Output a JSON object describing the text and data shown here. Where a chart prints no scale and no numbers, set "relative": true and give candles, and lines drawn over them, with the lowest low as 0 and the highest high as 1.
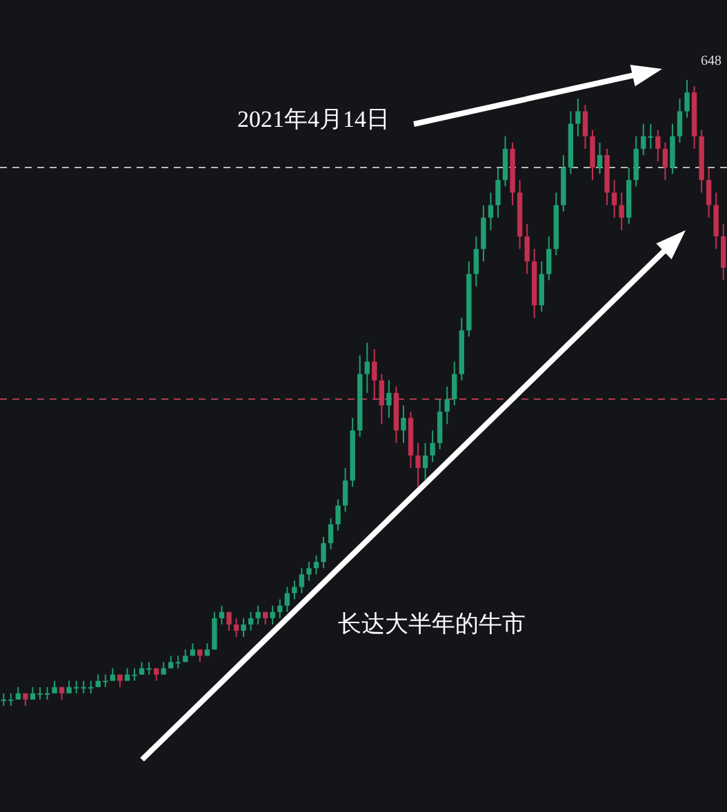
{
  "chart_data": {
    "type": "candlestick",
    "relative": true,
    "categories": [
      null,
      null,
      null,
      null,
      null,
      null,
      null,
      null,
      null,
      null,
      null,
      null,
      null,
      null,
      null,
      null,
      null,
      null,
      null,
      null,
      null,
      null,
      null,
      null,
      null,
      null,
      null,
      null,
      null,
      null,
      null,
      null,
      null,
      null,
      null,
      null,
      null,
      null,
      null,
      null,
      null,
      null,
      null,
      null,
      null,
      null,
      null,
      null,
      null,
      null,
      null,
      null,
      null,
      null,
      null,
      null,
      null,
      null,
      null,
      null,
      null,
      null,
      null,
      null,
      null,
      null,
      null,
      null,
      null,
      null,
      null,
      null,
      null,
      null,
      null,
      null,
      null,
      null,
      null,
      null,
      null,
      null,
      null,
      null,
      null,
      null,
      null,
      null,
      null,
      null,
      null,
      null,
      null,
      null,
      null,
      null,
      null,
      null,
      null,
      null
    ],
    "ohlc": [
      [
        0.01,
        0.02,
        0.0,
        0.01
      ],
      [
        0.01,
        0.02,
        0.0,
        0.01
      ],
      [
        0.01,
        0.03,
        0.01,
        0.02
      ],
      [
        0.02,
        0.02,
        0.0,
        0.01
      ],
      [
        0.01,
        0.03,
        0.01,
        0.02
      ],
      [
        0.02,
        0.03,
        0.01,
        0.02
      ],
      [
        0.02,
        0.03,
        0.01,
        0.02
      ],
      [
        0.02,
        0.04,
        0.02,
        0.03
      ],
      [
        0.03,
        0.03,
        0.01,
        0.02
      ],
      [
        0.02,
        0.04,
        0.02,
        0.03
      ],
      [
        0.03,
        0.04,
        0.02,
        0.03
      ],
      [
        0.03,
        0.04,
        0.02,
        0.03
      ],
      [
        0.03,
        0.04,
        0.02,
        0.03
      ],
      [
        0.03,
        0.05,
        0.03,
        0.04
      ],
      [
        0.04,
        0.05,
        0.03,
        0.04
      ],
      [
        0.04,
        0.06,
        0.04,
        0.05
      ],
      [
        0.05,
        0.05,
        0.03,
        0.04
      ],
      [
        0.04,
        0.06,
        0.04,
        0.05
      ],
      [
        0.05,
        0.06,
        0.04,
        0.05
      ],
      [
        0.05,
        0.07,
        0.05,
        0.06
      ],
      [
        0.06,
        0.07,
        0.05,
        0.06
      ],
      [
        0.06,
        0.06,
        0.04,
        0.05
      ],
      [
        0.05,
        0.07,
        0.05,
        0.06
      ],
      [
        0.06,
        0.08,
        0.06,
        0.07
      ],
      [
        0.07,
        0.08,
        0.06,
        0.07
      ],
      [
        0.07,
        0.09,
        0.07,
        0.08
      ],
      [
        0.08,
        0.1,
        0.08,
        0.09
      ],
      [
        0.09,
        0.09,
        0.07,
        0.08
      ],
      [
        0.08,
        0.1,
        0.08,
        0.09
      ],
      [
        0.09,
        0.15,
        0.09,
        0.14
      ],
      [
        0.14,
        0.16,
        0.13,
        0.15
      ],
      [
        0.15,
        0.15,
        0.12,
        0.13
      ],
      [
        0.13,
        0.14,
        0.11,
        0.12
      ],
      [
        0.12,
        0.14,
        0.11,
        0.13
      ],
      [
        0.13,
        0.15,
        0.12,
        0.14
      ],
      [
        0.14,
        0.16,
        0.13,
        0.15
      ],
      [
        0.15,
        0.15,
        0.13,
        0.14
      ],
      [
        0.14,
        0.16,
        0.13,
        0.15
      ],
      [
        0.15,
        0.17,
        0.14,
        0.16
      ],
      [
        0.16,
        0.19,
        0.15,
        0.18
      ],
      [
        0.18,
        0.2,
        0.17,
        0.19
      ],
      [
        0.19,
        0.22,
        0.18,
        0.21
      ],
      [
        0.21,
        0.23,
        0.2,
        0.22
      ],
      [
        0.22,
        0.24,
        0.21,
        0.23
      ],
      [
        0.23,
        0.27,
        0.22,
        0.26
      ],
      [
        0.26,
        0.3,
        0.25,
        0.29
      ],
      [
        0.29,
        0.33,
        0.28,
        0.32
      ],
      [
        0.32,
        0.38,
        0.31,
        0.36
      ],
      [
        0.36,
        0.46,
        0.35,
        0.44
      ],
      [
        0.44,
        0.56,
        0.43,
        0.53
      ],
      [
        0.53,
        0.58,
        0.5,
        0.55
      ],
      [
        0.55,
        0.57,
        0.49,
        0.52
      ],
      [
        0.52,
        0.53,
        0.45,
        0.48
      ],
      [
        0.48,
        0.52,
        0.46,
        0.5
      ],
      [
        0.5,
        0.51,
        0.42,
        0.44
      ],
      [
        0.44,
        0.48,
        0.42,
        0.46
      ],
      [
        0.46,
        0.47,
        0.38,
        0.4
      ],
      [
        0.4,
        0.42,
        0.35,
        0.38
      ],
      [
        0.38,
        0.42,
        0.36,
        0.4
      ],
      [
        0.4,
        0.44,
        0.39,
        0.42
      ],
      [
        0.42,
        0.49,
        0.41,
        0.47
      ],
      [
        0.47,
        0.51,
        0.45,
        0.49
      ],
      [
        0.49,
        0.55,
        0.48,
        0.53
      ],
      [
        0.53,
        0.62,
        0.52,
        0.6
      ],
      [
        0.6,
        0.71,
        0.59,
        0.69
      ],
      [
        0.69,
        0.75,
        0.67,
        0.73
      ],
      [
        0.73,
        0.8,
        0.71,
        0.78
      ],
      [
        0.78,
        0.82,
        0.76,
        0.8
      ],
      [
        0.8,
        0.86,
        0.78,
        0.84
      ],
      [
        0.84,
        0.91,
        0.83,
        0.89
      ],
      [
        0.89,
        0.9,
        0.8,
        0.82
      ],
      [
        0.82,
        0.84,
        0.73,
        0.75
      ],
      [
        0.75,
        0.77,
        0.69,
        0.71
      ],
      [
        0.71,
        0.73,
        0.62,
        0.64
      ],
      [
        0.64,
        0.71,
        0.63,
        0.69
      ],
      [
        0.69,
        0.75,
        0.68,
        0.73
      ],
      [
        0.73,
        0.82,
        0.72,
        0.8
      ],
      [
        0.8,
        0.88,
        0.79,
        0.86
      ],
      [
        0.86,
        0.95,
        0.85,
        0.93
      ],
      [
        0.93,
        0.97,
        0.91,
        0.95
      ],
      [
        0.95,
        0.96,
        0.89,
        0.91
      ],
      [
        0.91,
        0.92,
        0.84,
        0.86
      ],
      [
        0.86,
        0.9,
        0.85,
        0.88
      ],
      [
        0.88,
        0.89,
        0.8,
        0.82
      ],
      [
        0.82,
        0.84,
        0.78,
        0.8
      ],
      [
        0.8,
        0.82,
        0.76,
        0.78
      ],
      [
        0.78,
        0.86,
        0.77,
        0.84
      ],
      [
        0.84,
        0.91,
        0.83,
        0.89
      ],
      [
        0.89,
        0.93,
        0.88,
        0.91
      ],
      [
        0.91,
        0.93,
        0.89,
        0.91
      ],
      [
        0.91,
        0.92,
        0.87,
        0.89
      ],
      [
        0.89,
        0.9,
        0.84,
        0.86
      ],
      [
        0.86,
        0.93,
        0.85,
        0.91
      ],
      [
        0.91,
        0.97,
        0.9,
        0.95
      ],
      [
        0.95,
        1.0,
        0.94,
        0.98
      ],
      [
        0.98,
        0.99,
        0.89,
        0.91
      ],
      [
        0.91,
        0.92,
        0.82,
        0.84
      ],
      [
        0.84,
        0.86,
        0.78,
        0.8
      ],
      [
        0.8,
        0.82,
        0.73,
        0.75
      ],
      [
        0.75,
        0.77,
        0.68,
        0.7
      ]
    ],
    "ref_lines": [
      {
        "axis": "y",
        "value": 0.86,
        "color": "#bbbbbb",
        "line_style": "dashed"
      },
      {
        "axis": "y",
        "value": 0.49,
        "color": "#b03a4e",
        "line_style": "dashed"
      }
    ],
    "annotations": [
      "2021年4月14日",
      "长达大半年的牛市",
      "648"
    ]
  }
}
